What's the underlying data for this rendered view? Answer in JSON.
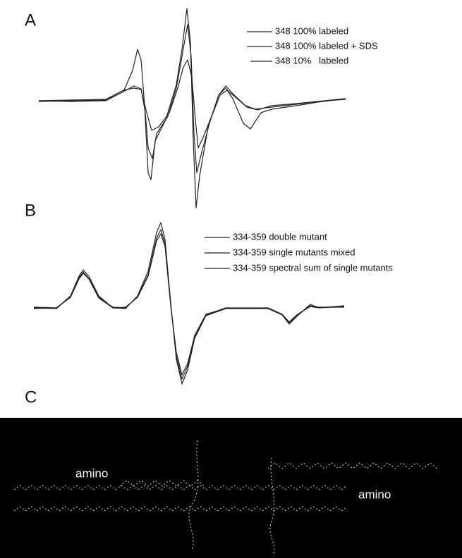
{
  "panels": [
    {
      "label": "A",
      "legend": [
        "348 100% labeled",
        "348 100% labeled + SDS",
        "348 10%   labeled"
      ]
    },
    {
      "label": "B",
      "legend": [
        "334-359 double mutant",
        "334-359 single mutants mixed",
        "334-359 spectral sum of single mutants"
      ]
    },
    {
      "label": "C",
      "annotations": [
        "amino",
        "amino"
      ]
    }
  ]
}
